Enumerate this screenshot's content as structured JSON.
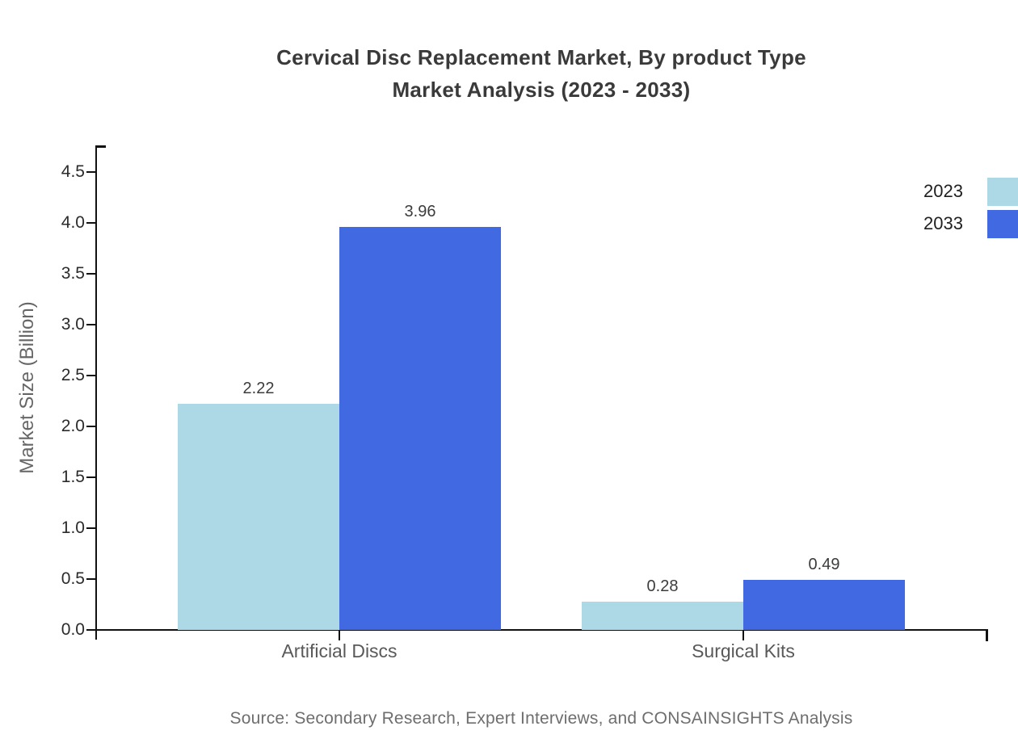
{
  "title": {
    "line1": "Cervical Disc Replacement Market, By product Type",
    "line2": "Market Analysis (2023 - 2033)"
  },
  "chart_data": {
    "type": "bar",
    "title": "Cervical Disc Replacement Market, By product Type Market Analysis (2023 - 2033)",
    "categories": [
      "Artificial Discs",
      "Surgical Kits"
    ],
    "series": [
      {
        "name": "2023",
        "color": "#add8e6",
        "values": [
          2.22,
          0.28
        ]
      },
      {
        "name": "2033",
        "color": "#4169e1",
        "values": [
          3.96,
          0.49
        ]
      }
    ],
    "xlabel": "",
    "ylabel": "Market Size (Billion)",
    "ylim": [
      0,
      4.76
    ],
    "yticks": [
      0.0,
      0.5,
      1.0,
      1.5,
      2.0,
      2.5,
      3.0,
      3.5,
      4.0,
      4.5
    ],
    "grid": false,
    "legend_position": "top-right-outside",
    "value_labels": true,
    "value_label_format": "2dp",
    "axis_color": "#111111"
  },
  "footer": {
    "source": "Source: Secondary Research, Expert Interviews, and CONSAINSIGHTS Analysis"
  }
}
